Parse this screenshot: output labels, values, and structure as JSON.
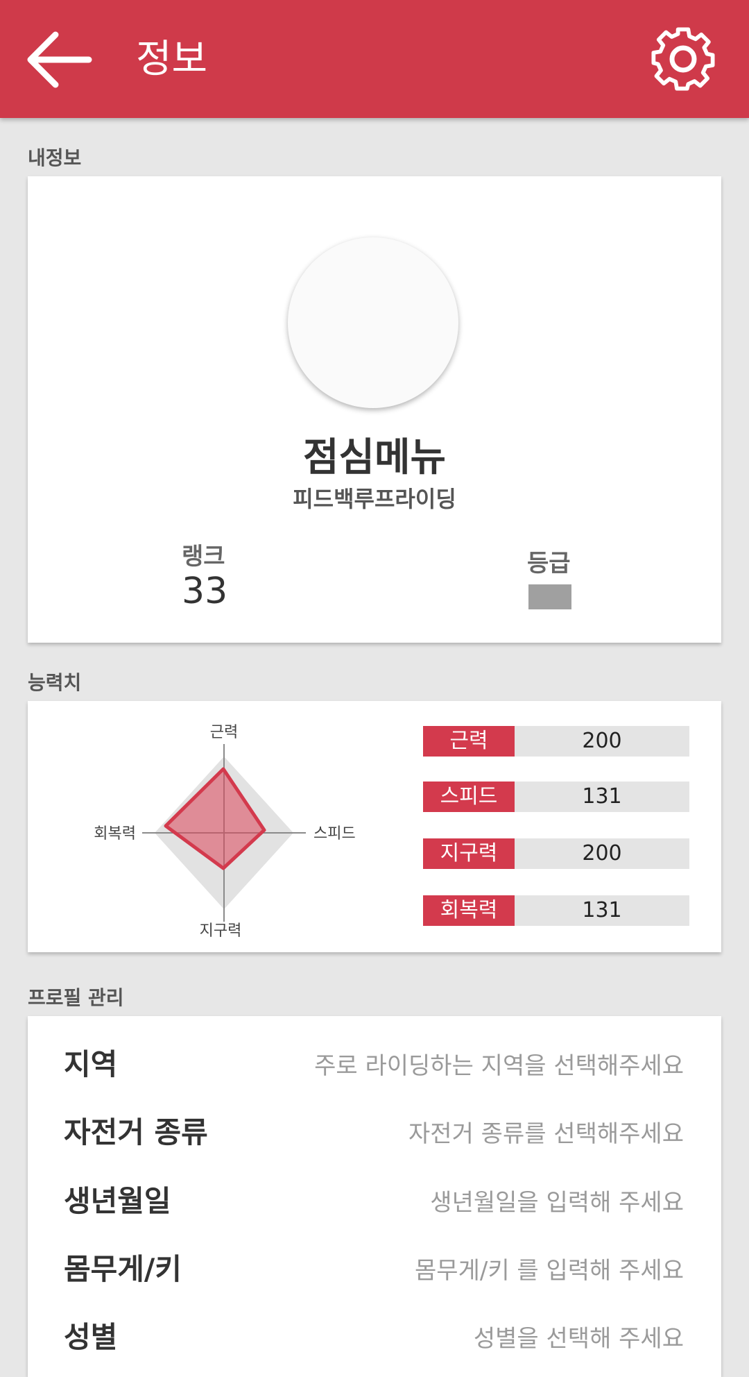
{
  "appbar": {
    "title": "정보",
    "back_icon": "arrow-left-icon",
    "settings_icon": "gear-icon",
    "color": "#cf3a4a"
  },
  "my_info": {
    "section_label": "내정보",
    "nickname": "점심메뉴",
    "team": "피드백루프라이딩",
    "rank_label": "랭크",
    "rank_value": "33",
    "grade_label": "등급"
  },
  "stats": {
    "section_label": "능력치",
    "radar_labels": {
      "top": "근력",
      "right": "스피드",
      "bottom": "지구력",
      "left": "회복력"
    },
    "items": [
      {
        "label": "근력",
        "value": "200"
      },
      {
        "label": "스피드",
        "value": "131"
      },
      {
        "label": "지구력",
        "value": "200"
      },
      {
        "label": "회복력",
        "value": "131"
      }
    ],
    "accent": "#d33a4d"
  },
  "profile": {
    "section_label": "프로필 관리",
    "fields": [
      {
        "label": "지역",
        "hint": "주로 라이딩하는 지역을 선택해주세요"
      },
      {
        "label": "자전거 종류",
        "hint": "자전거 종류를 선택해주세요"
      },
      {
        "label": "생년월일",
        "hint": "생년월일을 입력해 주세요"
      },
      {
        "label": "몸무게/키",
        "hint": "몸무게/키 를 입력해 주세요"
      },
      {
        "label": "성별",
        "hint": "성별을 선택해 주세요"
      }
    ]
  }
}
